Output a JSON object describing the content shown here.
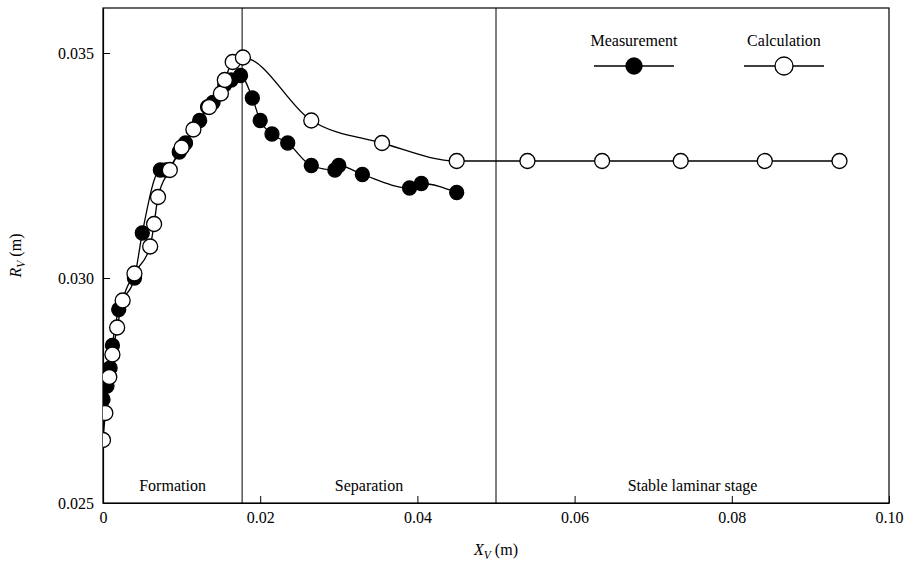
{
  "chart_data": {
    "type": "line",
    "xlabel": "XV (m)",
    "ylabel": "RV (m)",
    "xlim": [
      0,
      0.1
    ],
    "ylim": [
      0.025,
      0.036
    ],
    "xticks": [
      0,
      0.02,
      0.04,
      0.06,
      0.08,
      {
        "value": 0.1,
        "label": "0.10"
      }
    ],
    "yticks": [
      0.025,
      {
        "value": 0.03,
        "label": "0.030"
      },
      0.035
    ],
    "legend": "upper right",
    "grid": false,
    "stage_boundaries": [
      0.0177,
      0.05
    ],
    "stage_labels": [
      "Formation",
      "Separation",
      "Stable laminar stage"
    ],
    "series": [
      {
        "name": "Measurement",
        "color": "#000000",
        "marker": "filled-circle",
        "line_style": "solid",
        "x": [
          0,
          0.0005,
          0.0009,
          0.0012,
          0.002,
          0.004,
          0.005,
          0.0073,
          0.008,
          0.0097,
          0.0105,
          0.0123,
          0.0133,
          0.014,
          0.0155,
          0.0163,
          0.0175,
          0.019,
          0.02,
          0.0215,
          0.0235,
          0.0265,
          0.0295,
          0.03,
          0.033,
          0.039,
          0.0405,
          0.045
        ],
        "values": [
          0.0273,
          0.0276,
          0.028,
          0.0285,
          0.0293,
          0.03,
          0.031,
          0.0324,
          0.0324,
          0.0328,
          0.033,
          0.0335,
          0.0338,
          0.0339,
          0.0343,
          0.0344,
          0.0345,
          0.034,
          0.0335,
          0.0332,
          0.033,
          0.0325,
          0.0324,
          0.0325,
          0.0323,
          0.032,
          0.0321,
          0.0319
        ]
      },
      {
        "name": "Calculation",
        "color": "#000000",
        "marker": "open-circle",
        "line_style": "solid",
        "x": [
          0,
          0.0003,
          0.0008,
          0.0012,
          0.0018,
          0.0025,
          0.004,
          0.006,
          0.0065,
          0.007,
          0.0085,
          0.01,
          0.0115,
          0.0135,
          0.015,
          0.0155,
          0.0165,
          0.0178,
          0.0265,
          0.0355,
          0.045,
          0.054,
          0.0635,
          0.0735,
          0.0842,
          0.0937
        ],
        "values": [
          0.0264,
          0.027,
          0.0278,
          0.0283,
          0.0289,
          0.0295,
          0.0301,
          0.0307,
          0.0312,
          0.0318,
          0.0324,
          0.0329,
          0.0333,
          0.0338,
          0.0341,
          0.0344,
          0.0348,
          0.0349,
          0.0335,
          0.033,
          0.0326,
          0.0326,
          0.0326,
          0.0326,
          0.0326,
          0.0326
        ]
      }
    ]
  }
}
